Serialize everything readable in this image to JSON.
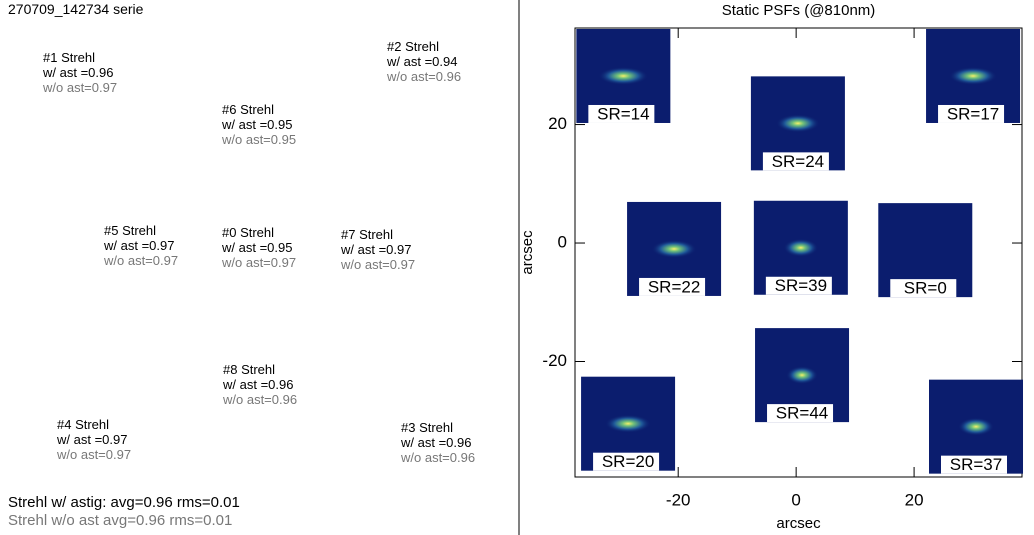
{
  "left": {
    "title": "270709_142734 serie",
    "stations": [
      {
        "label": "#1 Strehl",
        "with": "w/ ast =0.96",
        "without": "w/o ast=0.97"
      },
      {
        "label": "#2 Strehl",
        "with": "w/ ast =0.94",
        "without": "w/o ast=0.96"
      },
      {
        "label": "#6 Strehl",
        "with": "w/ ast =0.95",
        "without": "w/o ast=0.95"
      },
      {
        "label": "#5 Strehl",
        "with": "w/ ast =0.97",
        "without": "w/o ast=0.97"
      },
      {
        "label": "#0 Strehl",
        "with": "w/ ast =0.95",
        "without": "w/o ast=0.97"
      },
      {
        "label": "#7 Strehl",
        "with": "w/ ast =0.97",
        "without": "w/o ast=0.97"
      },
      {
        "label": "#8 Strehl",
        "with": "w/ ast =0.96",
        "without": "w/o ast=0.96"
      },
      {
        "label": "#4 Strehl",
        "with": "w/ ast =0.97",
        "without": "w/o ast=0.97"
      },
      {
        "label": "#3 Strehl",
        "with": "w/ ast =0.96",
        "without": "w/o ast=0.96"
      }
    ],
    "summary": [
      "Strehl w/ astig: avg=0.96 rms=0.01",
      "Strehl w/o ast avg=0.96 rms=0.01"
    ]
  },
  "chart_data": {
    "type": "image-scatter",
    "title": "Static PSFs (@810nm)",
    "xlabel": "arcsec",
    "ylabel": "arcsec",
    "xlim": [
      -37.5,
      38.3
    ],
    "ylim": [
      -39.5,
      36.3
    ],
    "xticks": [
      -20,
      0,
      20
    ],
    "yticks": [
      -20,
      0,
      20
    ],
    "x": [
      -29.3,
      30,
      0.3,
      -20.7,
      0.8,
      21.9,
      1,
      -28.5,
      30.5
    ],
    "y": [
      28.2,
      28.2,
      20.2,
      -1,
      -0.8,
      -1.2,
      -22.3,
      -30.5,
      -31
    ],
    "values": [
      14,
      17,
      24,
      22,
      39,
      0,
      44,
      20,
      37
    ],
    "value_labels": [
      "SR=14",
      "SR=17",
      "SR=24",
      "SR=22",
      "SR=39",
      "SR=0",
      "SR=44",
      "SR=20",
      "SR=37"
    ]
  }
}
